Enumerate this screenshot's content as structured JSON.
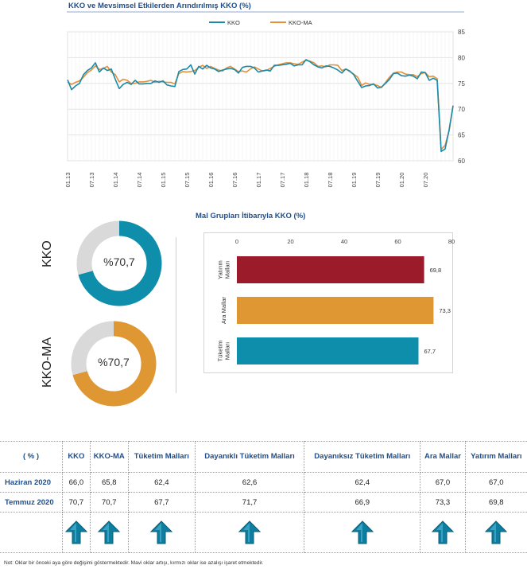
{
  "line_chart": {
    "title": "KKO ve Mevsimsel Etkilerden Arındırılmış KKO (%)"
  },
  "donuts": [
    {
      "label": "KKO",
      "value_text": "%70,7",
      "value": 70.7,
      "color": "#0e8eab"
    },
    {
      "label": "KKO-MA",
      "value_text": "%70,7",
      "value": 70.7,
      "color": "#df9733"
    }
  ],
  "bar_chart": {
    "title": "Mal Grupları İtibarıyla KKO (%)"
  },
  "table": {
    "corner": "( % )",
    "headers": [
      "KKO",
      "KKO-MA",
      "Tüketim Malları",
      "Dayanıklı Tüketim Malları",
      "Dayanıksız Tüketim Malları",
      "Ara Mallar",
      "Yatırım Malları"
    ],
    "rows": [
      {
        "label": "Haziran 2020",
        "values": [
          "66,0",
          "65,8",
          "62,4",
          "62,6",
          "62,4",
          "67,0",
          "67,0"
        ]
      },
      {
        "label": "Temmuz 2020",
        "values": [
          "70,7",
          "70,7",
          "67,7",
          "71,7",
          "66,9",
          "73,3",
          "69,8"
        ]
      }
    ],
    "arrow_color": "#0e7ea0",
    "arrow_icon": "up-arrow-icon"
  },
  "note": "Not: Oklar bir önceki aya göre değişimi göstermektedir. Mavi oklar artışı, kırmızı oklar ise azalışı işaret etmektedir.",
  "chart_data": [
    {
      "type": "line",
      "title": "KKO ve Mevsimsel Etkilerden Arındırılmış KKO (%)",
      "xlabel": "",
      "ylabel": "",
      "ylim": [
        60,
        85
      ],
      "yticks": [
        60,
        65,
        70,
        75,
        80,
        85
      ],
      "x_tick_labels": [
        "01.13",
        "07.13",
        "01.14",
        "07.14",
        "01.15",
        "07.15",
        "01.16",
        "07.16",
        "01.17",
        "07.17",
        "01.18",
        "07.18",
        "01.19",
        "07.19",
        "01.20",
        "07.20"
      ],
      "grid": true,
      "legend": "top-center",
      "series": [
        {
          "name": "KKO",
          "color": "#1a8aa8",
          "values": [
            75.7,
            73.8,
            74.5,
            75.0,
            76.7,
            77.5,
            78.0,
            79.0,
            77.2,
            78.0,
            77.5,
            77.8,
            75.8,
            74.0,
            74.8,
            75.2,
            74.8,
            75.6,
            74.9,
            74.9,
            75.0,
            75.0,
            75.5,
            75.2,
            75.5,
            74.7,
            74.5,
            74.4,
            77.3,
            77.7,
            77.8,
            78.6,
            76.8,
            78.3,
            77.8,
            78.5,
            78.0,
            77.8,
            77.3,
            77.6,
            77.8,
            77.9,
            77.7,
            77.0,
            78.1,
            78.3,
            78.3,
            78.0,
            77.2,
            77.4,
            77.6,
            77.4,
            78.5,
            78.5,
            78.6,
            78.7,
            78.9,
            78.4,
            78.6,
            78.6,
            79.6,
            79.2,
            78.6,
            78.2,
            78.0,
            78.4,
            78.3,
            78.0,
            77.6,
            77.0,
            77.8,
            77.4,
            76.7,
            75.4,
            74.2,
            74.5,
            74.6,
            74.9,
            74.1,
            74.3,
            75.0,
            75.8,
            76.9,
            77.0,
            76.5,
            76.4,
            76.6,
            76.4,
            75.9,
            77.2,
            77.1,
            75.6,
            76.0,
            75.6,
            61.8,
            62.3,
            66.0,
            70.7
          ]
        },
        {
          "name": "KKO-MA",
          "color": "#e48f3a",
          "values": [
            75.3,
            74.8,
            75.2,
            75.5,
            76.2,
            77.1,
            77.6,
            78.4,
            77.7,
            77.9,
            78.3,
            77.2,
            76.7,
            75.3,
            75.8,
            75.6,
            75.0,
            75.0,
            75.3,
            75.3,
            75.4,
            75.6,
            75.2,
            75.4,
            75.3,
            75.2,
            75.2,
            74.9,
            76.9,
            77.3,
            77.2,
            77.3,
            77.5,
            78.1,
            78.5,
            77.9,
            78.3,
            77.9,
            77.6,
            77.4,
            78.0,
            78.3,
            77.8,
            77.3,
            77.4,
            77.2,
            77.8,
            78.2,
            77.8,
            77.4,
            77.5,
            77.9,
            78.3,
            78.6,
            78.8,
            79.0,
            79.0,
            78.8,
            78.7,
            79.1,
            79.5,
            79.3,
            79.0,
            78.3,
            78.4,
            78.2,
            78.6,
            78.6,
            78.5,
            77.5,
            77.8,
            77.3,
            76.8,
            76.2,
            74.6,
            75.1,
            74.8,
            74.8,
            74.6,
            74.2,
            75.2,
            76.2,
            77.0,
            77.2,
            77.2,
            76.8,
            76.7,
            76.7,
            76.3,
            76.9,
            77.1,
            76.3,
            76.4,
            75.9,
            62.2,
            63.0,
            65.8,
            70.7
          ]
        }
      ]
    },
    {
      "type": "pie",
      "title": "KKO",
      "values": [
        70.7,
        29.3
      ],
      "categories": [
        "KKO",
        ""
      ],
      "colors": [
        "#0e8eab",
        "#d9d9d9"
      ]
    },
    {
      "type": "pie",
      "title": "KKO-MA",
      "values": [
        70.7,
        29.3
      ],
      "categories": [
        "KKO-MA",
        ""
      ],
      "colors": [
        "#df9733",
        "#d9d9d9"
      ]
    },
    {
      "type": "bar",
      "orientation": "horizontal",
      "title": "Mal Grupları İtibarıyla KKO (%)",
      "categories": [
        "Yatırım Malları",
        "Ara Mallar",
        "Tüketim Malları"
      ],
      "category_lines": [
        [
          "Yatırım",
          "Malları"
        ],
        [
          "Ara Mallar"
        ],
        [
          "Tüketim",
          "Malları"
        ]
      ],
      "values": [
        69.8,
        73.3,
        67.7
      ],
      "value_labels": [
        "69,8",
        "73,3",
        "67,7"
      ],
      "colors": [
        "#9b1b2a",
        "#df9733",
        "#0e8eab"
      ],
      "xlim": [
        0,
        80
      ],
      "xticks": [
        0,
        20,
        40,
        60,
        80
      ],
      "xaxis_position": "top"
    }
  ]
}
